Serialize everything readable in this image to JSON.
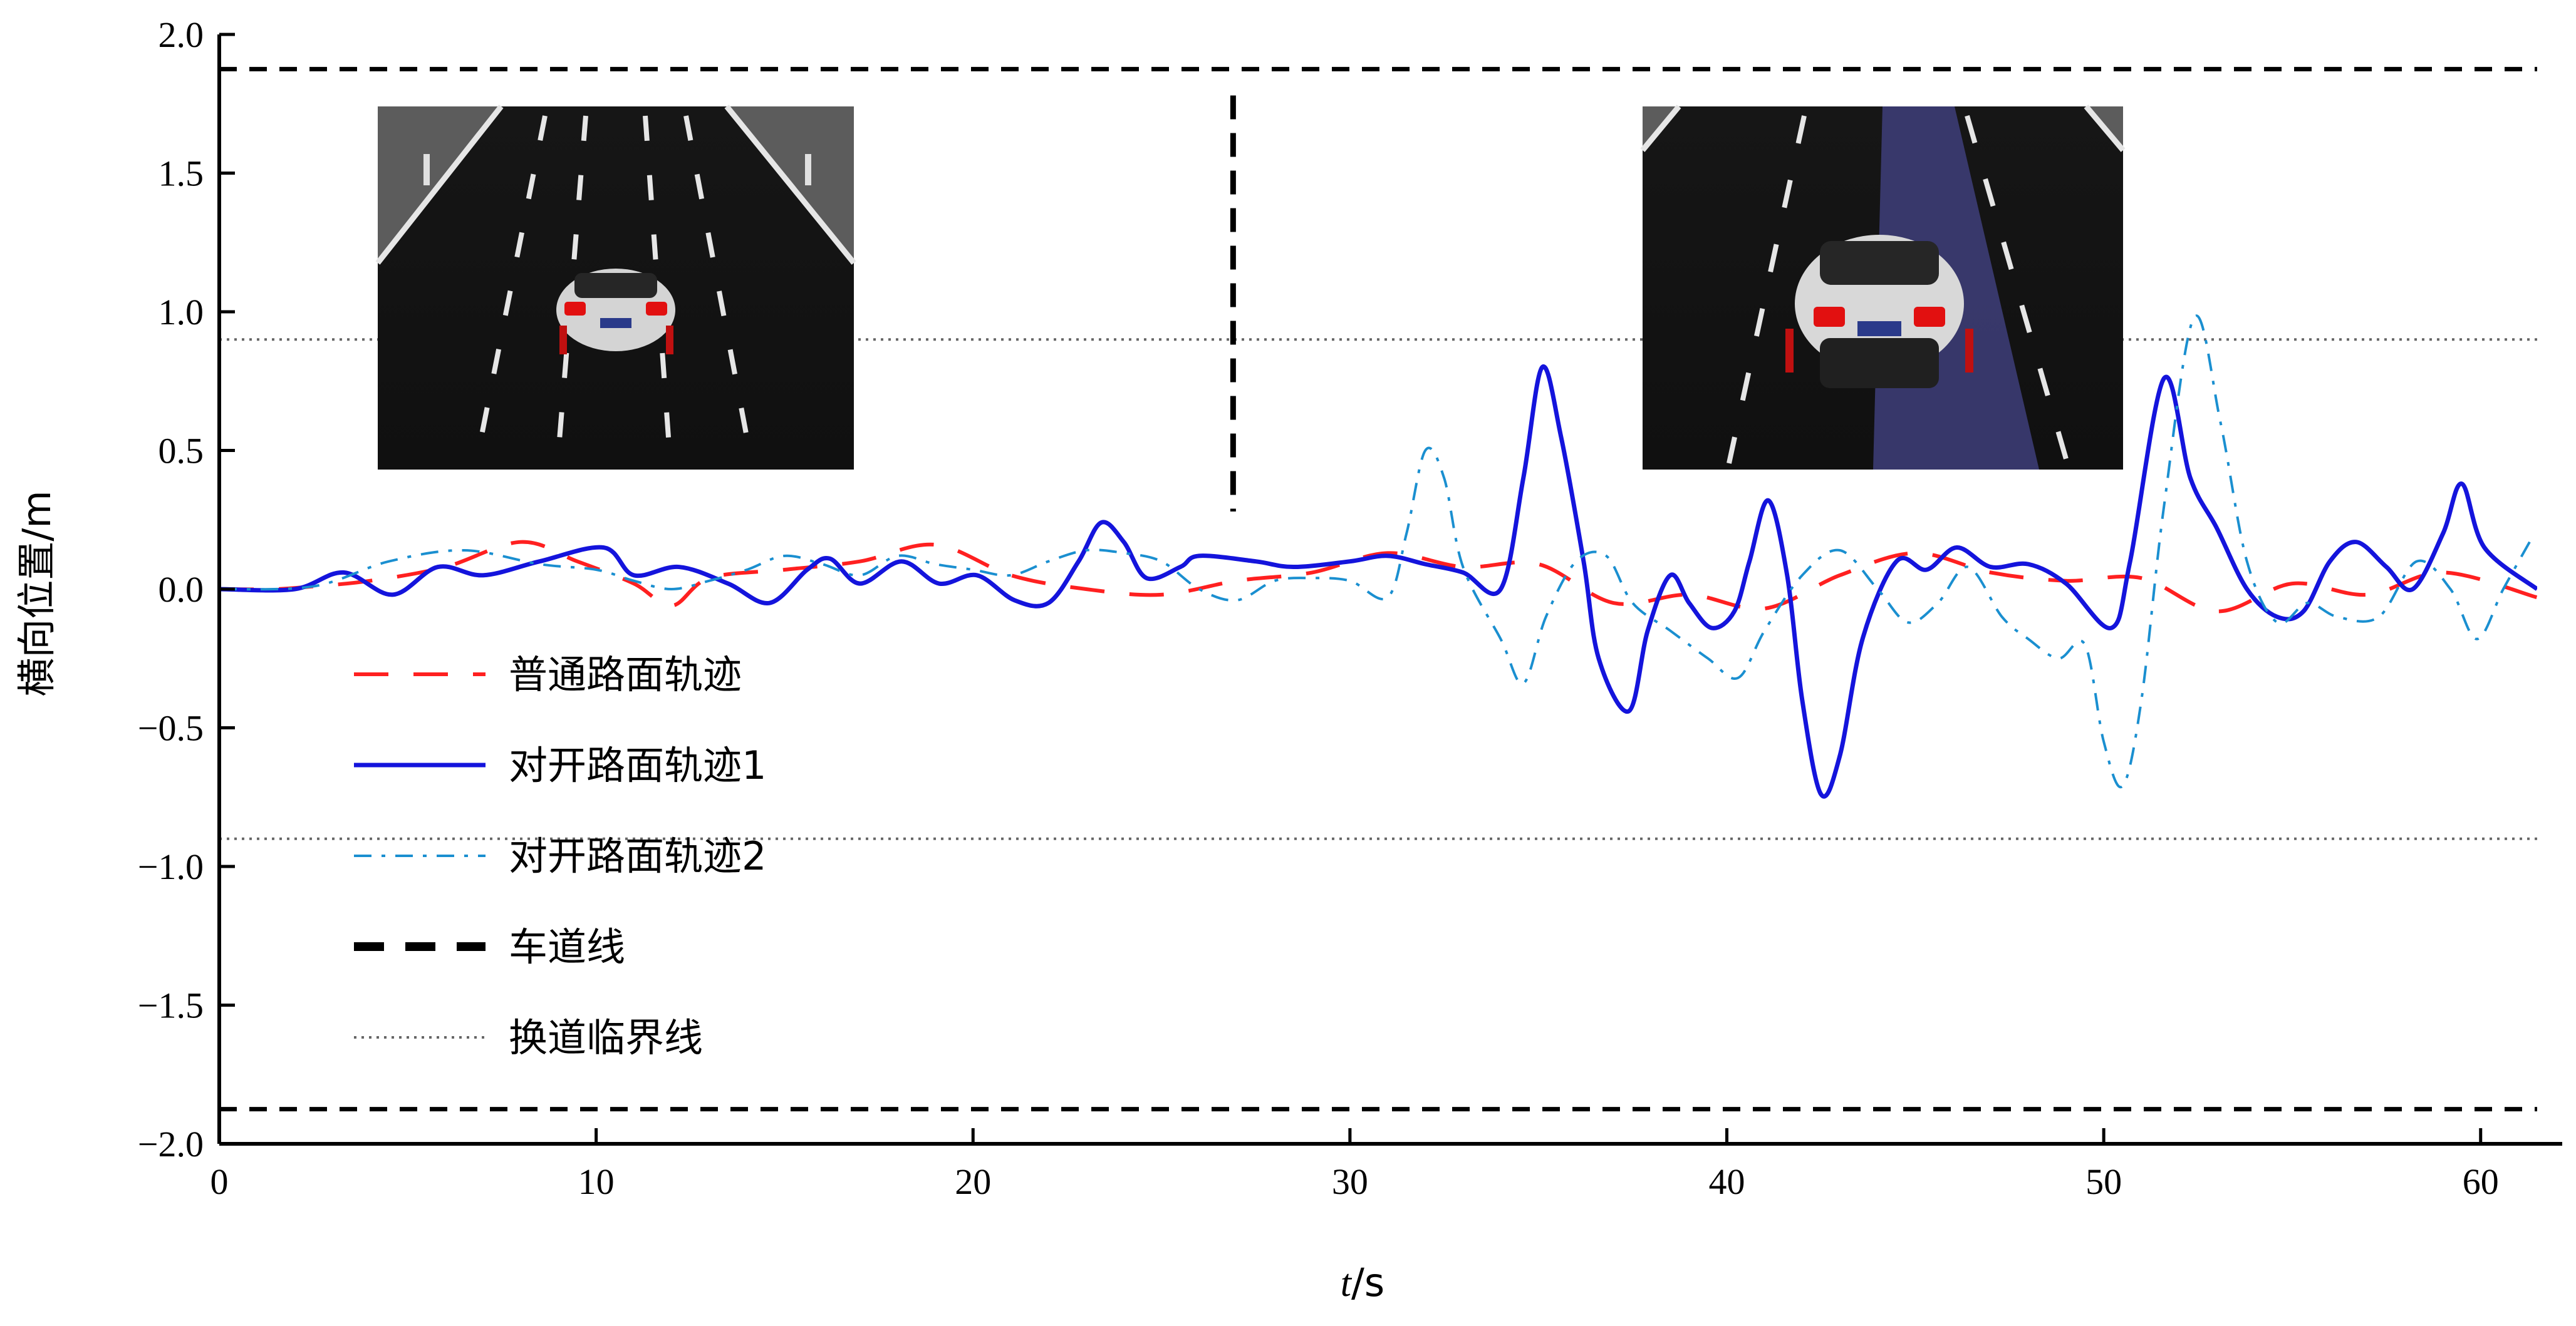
{
  "chart_data": {
    "type": "line",
    "xlabel": "t/s",
    "ylabel": "横向位置/m",
    "xlim": [
      0,
      61.5
    ],
    "ylim": [
      -2.0,
      2.0
    ],
    "x_ticks": [
      0,
      10,
      20,
      30,
      40,
      50,
      60
    ],
    "x_tick_labels": [
      "0",
      "10",
      "20",
      "30",
      "40",
      "50",
      "60"
    ],
    "y_ticks": [
      -2.0,
      -1.5,
      -1.0,
      -0.5,
      0.0,
      0.5,
      1.0,
      1.5,
      2.0
    ],
    "y_tick_labels": [
      "−2.0",
      "−1.5",
      "−1.0",
      "−0.5",
      "0.0",
      "0.5",
      "1.0",
      "1.5",
      "2.0"
    ],
    "grid": false,
    "legend_position": "left",
    "series": [
      {
        "name": "普通路面轨迹",
        "color": "#ff2020",
        "style": "dashed",
        "points": [
          [
            0,
            0
          ],
          [
            1.5,
            0
          ],
          [
            2.5,
            0.01
          ],
          [
            4,
            0.03
          ],
          [
            6,
            0.08
          ],
          [
            8,
            0.17
          ],
          [
            9.5,
            0.1
          ],
          [
            11,
            0.02
          ],
          [
            12,
            -0.06
          ],
          [
            13,
            0.04
          ],
          [
            15,
            0.07
          ],
          [
            17,
            0.1
          ],
          [
            19,
            0.16
          ],
          [
            21,
            0.05
          ],
          [
            23,
            0.0
          ],
          [
            25,
            -0.02
          ],
          [
            27,
            0.03
          ],
          [
            29,
            0.06
          ],
          [
            31,
            0.13
          ],
          [
            33,
            0.08
          ],
          [
            35,
            0.09
          ],
          [
            37,
            -0.05
          ],
          [
            39,
            -0.02
          ],
          [
            41,
            -0.07
          ],
          [
            43,
            0.05
          ],
          [
            45,
            0.13
          ],
          [
            47,
            0.06
          ],
          [
            49,
            0.03
          ],
          [
            51,
            0.04
          ],
          [
            53,
            -0.08
          ],
          [
            55,
            0.02
          ],
          [
            57,
            -0.02
          ],
          [
            59,
            0.06
          ],
          [
            61.5,
            -0.03
          ]
        ]
      },
      {
        "name": "对开路面轨迹1",
        "color": "#1414dc",
        "style": "solid",
        "points": [
          [
            0,
            0
          ],
          [
            2,
            0
          ],
          [
            3.3,
            0.06
          ],
          [
            4.6,
            -0.02
          ],
          [
            5.8,
            0.08
          ],
          [
            7,
            0.05
          ],
          [
            8.5,
            0.1
          ],
          [
            10.2,
            0.15
          ],
          [
            11,
            0.05
          ],
          [
            12.2,
            0.08
          ],
          [
            13.5,
            0.02
          ],
          [
            14.6,
            -0.05
          ],
          [
            15.6,
            0.07
          ],
          [
            16.2,
            0.11
          ],
          [
            17,
            0.02
          ],
          [
            18.1,
            0.1
          ],
          [
            19.1,
            0.02
          ],
          [
            20.1,
            0.05
          ],
          [
            21.1,
            -0.04
          ],
          [
            22,
            -0.05
          ],
          [
            22.8,
            0.1
          ],
          [
            23.4,
            0.24
          ],
          [
            24,
            0.17
          ],
          [
            24.6,
            0.04
          ],
          [
            25.5,
            0.08
          ],
          [
            26,
            0.12
          ],
          [
            27.5,
            0.1
          ],
          [
            28.5,
            0.08
          ],
          [
            30,
            0.1
          ],
          [
            31,
            0.12
          ],
          [
            32,
            0.09
          ],
          [
            33,
            0.06
          ],
          [
            34,
            0.0
          ],
          [
            34.6,
            0.4
          ],
          [
            35.1,
            0.8
          ],
          [
            35.6,
            0.55
          ],
          [
            36.2,
            0.1
          ],
          [
            36.6,
            -0.25
          ],
          [
            37.4,
            -0.44
          ],
          [
            37.9,
            -0.15
          ],
          [
            38.5,
            0.05
          ],
          [
            39,
            -0.05
          ],
          [
            39.6,
            -0.14
          ],
          [
            40.2,
            -0.08
          ],
          [
            40.6,
            0.1
          ],
          [
            41.1,
            0.32
          ],
          [
            41.6,
            0.05
          ],
          [
            42,
            -0.4
          ],
          [
            42.5,
            -0.74
          ],
          [
            43,
            -0.6
          ],
          [
            43.6,
            -0.18
          ],
          [
            44.5,
            0.1
          ],
          [
            45.3,
            0.07
          ],
          [
            46.1,
            0.15
          ],
          [
            47,
            0.08
          ],
          [
            48,
            0.09
          ],
          [
            49,
            0.02
          ],
          [
            50.2,
            -0.14
          ],
          [
            50.7,
            0.1
          ],
          [
            51.6,
            0.76
          ],
          [
            52.3,
            0.4
          ],
          [
            53,
            0.22
          ],
          [
            53.8,
            0.0
          ],
          [
            54.6,
            -0.1
          ],
          [
            55.3,
            -0.08
          ],
          [
            56,
            0.1
          ],
          [
            56.7,
            0.17
          ],
          [
            57.5,
            0.08
          ],
          [
            58.2,
            0.0
          ],
          [
            59,
            0.2
          ],
          [
            59.5,
            0.38
          ],
          [
            60.1,
            0.15
          ],
          [
            61.5,
            0.0
          ]
        ]
      },
      {
        "name": "对开路面轨迹2",
        "color": "#1a8fd0",
        "style": "dashdot",
        "points": [
          [
            0,
            0
          ],
          [
            2.5,
            0.01
          ],
          [
            4.5,
            0.1
          ],
          [
            6.5,
            0.14
          ],
          [
            8.5,
            0.09
          ],
          [
            10,
            0.07
          ],
          [
            11,
            0.03
          ],
          [
            12,
            0.0
          ],
          [
            13,
            0.03
          ],
          [
            14,
            0.07
          ],
          [
            15,
            0.12
          ],
          [
            16,
            0.09
          ],
          [
            17,
            0.05
          ],
          [
            18,
            0.12
          ],
          [
            19,
            0.09
          ],
          [
            20,
            0.07
          ],
          [
            21,
            0.05
          ],
          [
            22,
            0.1
          ],
          [
            23,
            0.14
          ],
          [
            24,
            0.13
          ],
          [
            25,
            0.1
          ],
          [
            26,
            0.0
          ],
          [
            27,
            -0.04
          ],
          [
            28,
            0.03
          ],
          [
            29,
            0.04
          ],
          [
            30,
            0.03
          ],
          [
            31,
            -0.03
          ],
          [
            31.5,
            0.2
          ],
          [
            32,
            0.5
          ],
          [
            32.5,
            0.4
          ],
          [
            33,
            0.08
          ],
          [
            34,
            -0.18
          ],
          [
            34.6,
            -0.34
          ],
          [
            35.2,
            -0.1
          ],
          [
            36,
            0.1
          ],
          [
            36.8,
            0.12
          ],
          [
            37.5,
            -0.05
          ],
          [
            38.5,
            -0.15
          ],
          [
            39.5,
            -0.25
          ],
          [
            40.3,
            -0.32
          ],
          [
            41,
            -0.15
          ],
          [
            42,
            0.05
          ],
          [
            43,
            0.14
          ],
          [
            44,
            0.0
          ],
          [
            44.8,
            -0.12
          ],
          [
            45.6,
            -0.05
          ],
          [
            46.4,
            0.08
          ],
          [
            47.3,
            -0.1
          ],
          [
            48,
            -0.18
          ],
          [
            48.8,
            -0.25
          ],
          [
            49.5,
            -0.2
          ],
          [
            50,
            -0.55
          ],
          [
            50.5,
            -0.71
          ],
          [
            51,
            -0.4
          ],
          [
            51.6,
            0.3
          ],
          [
            52.4,
            0.98
          ],
          [
            53.1,
            0.6
          ],
          [
            53.8,
            0.1
          ],
          [
            54.6,
            -0.12
          ],
          [
            55.4,
            -0.05
          ],
          [
            56.2,
            -0.1
          ],
          [
            57.3,
            -0.1
          ],
          [
            58.3,
            0.1
          ],
          [
            59.2,
            0.0
          ],
          [
            59.9,
            -0.18
          ],
          [
            60.6,
            0.0
          ],
          [
            61.3,
            0.17
          ]
        ]
      },
      {
        "name": "车道线",
        "color": "#000000",
        "style": "thick-dashed",
        "points_upper": [
          [
            0,
            1.875
          ],
          [
            61.5,
            1.875
          ]
        ],
        "points_lower": [
          [
            0,
            -1.875
          ],
          [
            61.5,
            -1.875
          ]
        ],
        "vertical_divider_x": 26.9,
        "vertical_divider_y": [
          0.28,
          1.78
        ]
      },
      {
        "name": "换道临界线",
        "color": "#666666",
        "style": "dotted",
        "points_upper": [
          [
            0,
            0.9
          ],
          [
            61.5,
            0.9
          ]
        ],
        "points_lower": [
          [
            0,
            -0.9
          ],
          [
            61.5,
            -0.9
          ]
        ]
      }
    ]
  }
}
